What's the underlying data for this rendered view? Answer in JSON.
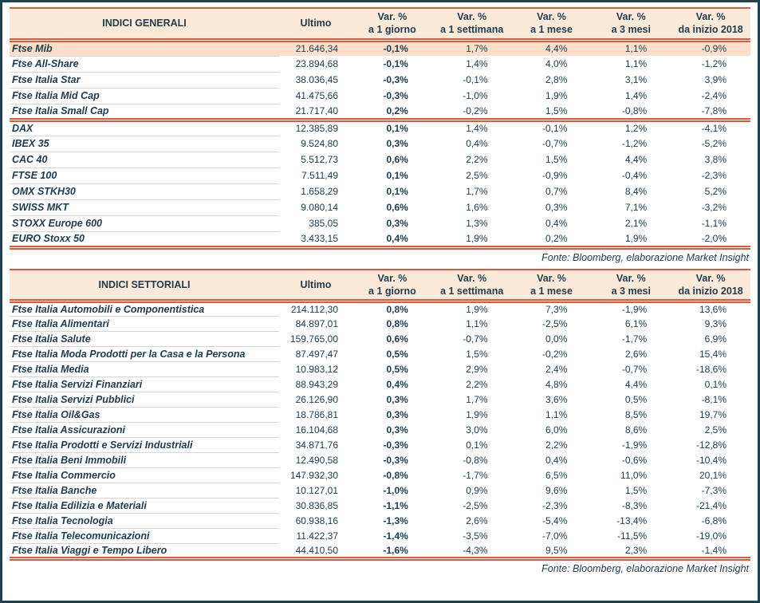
{
  "colors": {
    "ink": "#1d3c4e",
    "accent_red": "#dd5a3c",
    "header_bg": "#fcead9",
    "highlight_bg": "#fbdfca",
    "frame": "#204150",
    "row_separator": "#d6d6d6"
  },
  "tables": [
    {
      "title": "INDICI GENERALI",
      "ultimo_label": "Ultimo",
      "var_headers": [
        [
          "Var. %",
          "a 1 giorno"
        ],
        [
          "Var. %",
          "a 1 settimana"
        ],
        [
          "Var. %",
          "a 1 mese"
        ],
        [
          "Var. %",
          "a 3 mesi"
        ],
        [
          "Var. %",
          "da inizio 2018"
        ]
      ],
      "rows": [
        {
          "name": "Ftse Mib",
          "ultimo": "21.646,34",
          "vars": [
            "-0,1%",
            "1,7%",
            "4,4%",
            "1,1%",
            "-0,9%"
          ],
          "highlight": true
        },
        {
          "name": "Ftse All-Share",
          "ultimo": "23.894,68",
          "vars": [
            "-0,1%",
            "1,4%",
            "4,0%",
            "1,1%",
            "-1,2%"
          ]
        },
        {
          "name": "Ftse Italia Star",
          "ultimo": "38.036,45",
          "vars": [
            "-0,3%",
            "-0,1%",
            "2,8%",
            "3,1%",
            "3,9%"
          ]
        },
        {
          "name": "Ftse Italia Mid Cap",
          "ultimo": "41.475,66",
          "vars": [
            "-0,3%",
            "-1,0%",
            "1,9%",
            "1,4%",
            "-2,4%"
          ]
        },
        {
          "name": "Ftse Italia Small Cap",
          "ultimo": "21.717,40",
          "vars": [
            "0,2%",
            "-0,2%",
            "1,5%",
            "-0,8%",
            "-7,8%"
          ],
          "separator_after": true
        },
        {
          "name": "DAX",
          "ultimo": "12.385,89",
          "vars": [
            "0,1%",
            "1,4%",
            "-0,1%",
            "1,2%",
            "-4,1%"
          ]
        },
        {
          "name": "IBEX 35",
          "ultimo": "9.524,80",
          "vars": [
            "0,3%",
            "0,4%",
            "-0,7%",
            "-1,2%",
            "-5,2%"
          ]
        },
        {
          "name": "CAC 40",
          "ultimo": "5.512,73",
          "vars": [
            "0,6%",
            "2,2%",
            "1,5%",
            "4,4%",
            "3,8%"
          ]
        },
        {
          "name": "FTSE 100",
          "ultimo": "7.511,49",
          "vars": [
            "0,1%",
            "2,5%",
            "-0,9%",
            "-0,4%",
            "-2,3%"
          ]
        },
        {
          "name": "OMX STKH30",
          "ultimo": "1.658,29",
          "vars": [
            "0,1%",
            "1,7%",
            "0,7%",
            "8,4%",
            "5,2%"
          ]
        },
        {
          "name": "SWISS MKT",
          "ultimo": "9.080,14",
          "vars": [
            "0,6%",
            "1,6%",
            "0,3%",
            "7,1%",
            "-3,2%"
          ]
        },
        {
          "name": "STOXX Europe 600",
          "ultimo": "385,05",
          "vars": [
            "0,3%",
            "1,3%",
            "0,4%",
            "2,1%",
            "-1,1%"
          ]
        },
        {
          "name": "EURO Stoxx 50",
          "ultimo": "3.433,15",
          "vars": [
            "0,4%",
            "1,9%",
            "0,2%",
            "1,9%",
            "-2,0%"
          ]
        }
      ],
      "source": "Fonte: Bloomberg, elaborazione Market Insight"
    },
    {
      "title": "INDICI SETTORIALI",
      "ultimo_label": "Ultimo",
      "var_headers": [
        [
          "Var. %",
          "a 1 giorno"
        ],
        [
          "Var. %",
          "a 1 settimana"
        ],
        [
          "Var. %",
          "a 1 mese"
        ],
        [
          "Var. %",
          "a 3 mesi"
        ],
        [
          "Var. %",
          "da inizio 2018"
        ]
      ],
      "rows": [
        {
          "name": "Ftse Italia Automobili e Componentistica",
          "ultimo": "214.112,30",
          "vars": [
            "0,8%",
            "1,9%",
            "7,3%",
            "-1,9%",
            "13,6%"
          ]
        },
        {
          "name": "Ftse Italia Alimentari",
          "ultimo": "84.897,01",
          "vars": [
            "0,8%",
            "1,1%",
            "-2,5%",
            "6,1%",
            "9,3%"
          ]
        },
        {
          "name": "Ftse Italia Salute",
          "ultimo": "159.765,00",
          "vars": [
            "0,6%",
            "-0,7%",
            "0,0%",
            "-1,7%",
            "6,9%"
          ]
        },
        {
          "name": "Ftse Italia Moda Prodotti per la Casa e la Persona",
          "ultimo": "87.497,47",
          "vars": [
            "0,5%",
            "1,5%",
            "-0,2%",
            "2,6%",
            "15,4%"
          ]
        },
        {
          "name": "Ftse Italia Media",
          "ultimo": "10.983,12",
          "vars": [
            "0,5%",
            "2,9%",
            "2,4%",
            "-0,7%",
            "-18,6%"
          ]
        },
        {
          "name": "Ftse Italia Servizi Finanziari",
          "ultimo": "88.943,29",
          "vars": [
            "0,4%",
            "2,2%",
            "4,8%",
            "4,4%",
            "0,1%"
          ]
        },
        {
          "name": "Ftse Italia Servizi Pubblici",
          "ultimo": "26.126,90",
          "vars": [
            "0,3%",
            "1,7%",
            "3,6%",
            "0,5%",
            "-8,1%"
          ]
        },
        {
          "name": "Ftse Italia Oil&Gas",
          "ultimo": "18.786,81",
          "vars": [
            "0,3%",
            "1,9%",
            "1,1%",
            "8,5%",
            "19,7%"
          ]
        },
        {
          "name": "Ftse Italia Assicurazioni",
          "ultimo": "16.104,68",
          "vars": [
            "0,3%",
            "3,0%",
            "6,0%",
            "8,6%",
            "2,5%"
          ]
        },
        {
          "name": "Ftse Italia Prodotti e Servizi Industriali",
          "ultimo": "34.871,76",
          "vars": [
            "-0,3%",
            "0,1%",
            "2,2%",
            "-1,9%",
            "-12,8%"
          ]
        },
        {
          "name": "Ftse Italia Beni Immobili",
          "ultimo": "12.490,58",
          "vars": [
            "-0,3%",
            "-0,8%",
            "0,4%",
            "-0,6%",
            "-10,4%"
          ]
        },
        {
          "name": "Ftse Italia Commercio",
          "ultimo": "147.932,30",
          "vars": [
            "-0,8%",
            "-1,7%",
            "6,5%",
            "11,0%",
            "20,1%"
          ]
        },
        {
          "name": "Ftse Italia Banche",
          "ultimo": "10.127,01",
          "vars": [
            "-1,0%",
            "0,9%",
            "9,6%",
            "1,5%",
            "-7,3%"
          ]
        },
        {
          "name": "Ftse Italia Edilizia e Materiali",
          "ultimo": "30.836,85",
          "vars": [
            "-1,1%",
            "-2,5%",
            "-2,3%",
            "-8,3%",
            "-21,4%"
          ]
        },
        {
          "name": "Ftse Italia Tecnologia",
          "ultimo": "60.938,16",
          "vars": [
            "-1,3%",
            "2,6%",
            "-5,4%",
            "-13,4%",
            "-6,8%"
          ]
        },
        {
          "name": "Ftse Italia Telecomunicazioni",
          "ultimo": "11.422,37",
          "vars": [
            "-1,4%",
            "-3,5%",
            "-7,0%",
            "-11,5%",
            "-19,0%"
          ]
        },
        {
          "name": "Ftse Italia Viaggi e Tempo Libero",
          "ultimo": "44.410,50",
          "vars": [
            "-1,6%",
            "-4,3%",
            "9,5%",
            "2,3%",
            "-1,4%"
          ]
        }
      ],
      "source": "Fonte: Bloomberg, elaborazione Market Insight"
    }
  ]
}
